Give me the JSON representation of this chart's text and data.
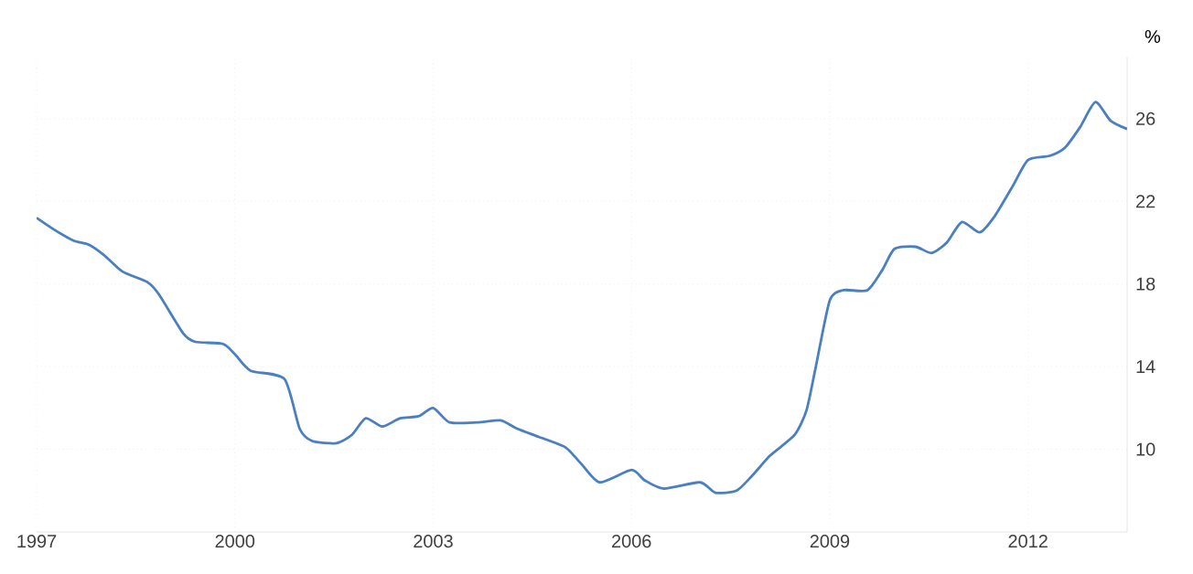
{
  "chart_data": {
    "type": "line",
    "ylabel": "%",
    "grid": true,
    "xlim": [
      1997,
      2013.5
    ],
    "ylim": [
      6,
      29
    ],
    "xticks": [
      1997,
      2000,
      2003,
      2006,
      2009,
      2012
    ],
    "yticks": [
      10,
      14,
      18,
      22,
      26
    ],
    "x": [
      1997.0,
      1997.28,
      1997.56,
      1997.79,
      1998.02,
      1998.3,
      1998.67,
      1998.85,
      1999.22,
      1999.4,
      1999.82,
      2000.0,
      2000.24,
      2000.75,
      2000.98,
      2001.17,
      2001.54,
      2001.77,
      2001.98,
      2002.23,
      2002.5,
      2002.78,
      2003.0,
      2003.25,
      2003.67,
      2004.02,
      2004.27,
      2004.6,
      2005.0,
      2005.24,
      2005.52,
      2006.0,
      2006.2,
      2006.49,
      2007.04,
      2007.27,
      2007.59,
      2007.82,
      2008.1,
      2008.47,
      2008.65,
      2008.79,
      2009.0,
      2009.2,
      2009.57,
      2009.8,
      2009.98,
      2010.3,
      2010.54,
      2010.77,
      2011.0,
      2011.27,
      2011.5,
      2011.78,
      2012.0,
      2012.33,
      2012.56,
      2012.79,
      2013.02,
      2013.25,
      2013.5
    ],
    "series": [
      {
        "color": "#4a7fc1",
        "values": [
          21.2,
          20.6,
          20.1,
          19.9,
          19.4,
          18.6,
          18.1,
          17.5,
          15.6,
          15.2,
          15.1,
          14.6,
          13.8,
          13.4,
          11.0,
          10.4,
          10.3,
          10.7,
          11.5,
          11.1,
          11.5,
          11.6,
          12.0,
          11.3,
          11.3,
          11.4,
          11.0,
          10.6,
          10.1,
          9.3,
          8.4,
          9.0,
          8.5,
          8.1,
          8.4,
          7.9,
          8.0,
          8.7,
          9.7,
          10.7,
          11.9,
          14.0,
          17.2,
          17.7,
          17.7,
          18.7,
          19.7,
          19.8,
          19.5,
          20.0,
          21.0,
          20.5,
          21.3,
          22.8,
          24.0,
          24.2,
          24.6,
          25.6,
          26.8,
          25.9,
          25.5
        ]
      }
    ]
  }
}
